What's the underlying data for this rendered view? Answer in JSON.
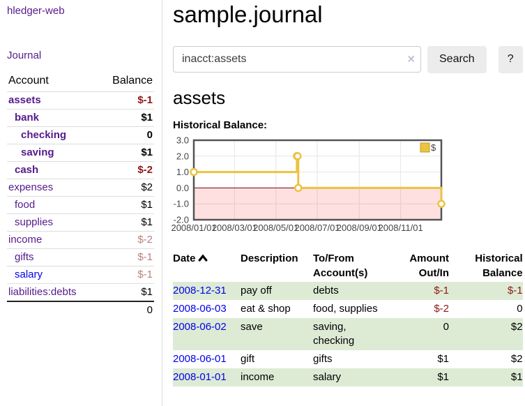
{
  "sidebar": {
    "app_link": "hledger-web",
    "journal_link": "Journal",
    "accounts": {
      "account_header": "Account",
      "balance_header": "Balance",
      "rows": [
        {
          "name": "assets",
          "indent": 0,
          "bold": true,
          "link": "purple",
          "balance": "$-1",
          "balance_style": "neg"
        },
        {
          "name": "bank",
          "indent": 1,
          "bold": true,
          "link": "purple",
          "balance": "$1",
          "balance_style": ""
        },
        {
          "name": "checking",
          "indent": 2,
          "bold": true,
          "link": "purple",
          "balance": "0",
          "balance_style": ""
        },
        {
          "name": "saving",
          "indent": 2,
          "bold": true,
          "link": "purple",
          "balance": "$1",
          "balance_style": ""
        },
        {
          "name": "cash",
          "indent": 1,
          "bold": true,
          "link": "purple",
          "balance": "$-2",
          "balance_style": "neg"
        },
        {
          "name": "expenses",
          "indent": 0,
          "bold": false,
          "link": "purple",
          "balance": "$2",
          "balance_style": ""
        },
        {
          "name": "food",
          "indent": 1,
          "bold": false,
          "link": "purple",
          "balance": "$1",
          "balance_style": ""
        },
        {
          "name": "supplies",
          "indent": 1,
          "bold": false,
          "link": "purple",
          "balance": "$1",
          "balance_style": ""
        },
        {
          "name": "income",
          "indent": 0,
          "bold": false,
          "link": "purple",
          "balance": "$-2",
          "balance_style": "mneg"
        },
        {
          "name": "gifts",
          "indent": 1,
          "bold": false,
          "link": "purple",
          "balance": "$-1",
          "balance_style": "mneg"
        },
        {
          "name": "salary",
          "indent": 1,
          "bold": false,
          "link": "blue",
          "balance": "$-1",
          "balance_style": "mneg"
        },
        {
          "name": "liabilities:debts",
          "indent": 0,
          "bold": false,
          "link": "purple",
          "balance": "$1",
          "balance_style": ""
        }
      ],
      "total": "0"
    }
  },
  "main": {
    "title": "sample.journal",
    "search": {
      "value": "inacct:assets",
      "clear_icon": "×",
      "button_label": "Search",
      "help_label": "?"
    },
    "account_heading": "assets",
    "chart_label": "Historical Balance:"
  },
  "chart_data": {
    "type": "line",
    "title": "Historical Balance:",
    "step": true,
    "x_range": [
      "2008-01-01",
      "2008-12-31"
    ],
    "y_range": [
      -2,
      3
    ],
    "y_ticks": [
      3,
      2,
      1,
      0,
      -1,
      -2
    ],
    "x_tick_labels": [
      "2008/01/01",
      "2008/03/01",
      "2008/05/01",
      "2008/07/01",
      "2008/09/01",
      "2008/11/01"
    ],
    "series": [
      {
        "name": "$",
        "color": "#edc240",
        "points": [
          [
            "2008-01-01",
            1
          ],
          [
            "2008-06-01",
            2
          ],
          [
            "2008-06-02",
            2
          ],
          [
            "2008-06-03",
            0
          ],
          [
            "2008-12-31",
            -1
          ]
        ]
      }
    ],
    "negative_region_fill": "rgba(255,0,0,0.12)",
    "zero_line_color": "#800000",
    "grid_color": "#e6e6e6",
    "border_color": "#545454",
    "legend_position": "top-right"
  },
  "register": {
    "headers": {
      "date": "Date",
      "description": "Description",
      "tofrom": "To/From\nAccount(s)",
      "amount": "Amount\nOut/In",
      "balance": "Historical\nBalance"
    },
    "rows": [
      {
        "date": "2008-12-31",
        "description": "pay off",
        "tofrom": "debts",
        "amount": "$-1",
        "amount_style": "neg",
        "balance": "$-1",
        "balance_style": "neg"
      },
      {
        "date": "2008-06-03",
        "description": "eat & shop",
        "tofrom": "food, supplies",
        "amount": "$-2",
        "amount_style": "neg",
        "balance": "0",
        "balance_style": ""
      },
      {
        "date": "2008-06-02",
        "description": "save",
        "tofrom": "saving,\nchecking",
        "amount": "0",
        "amount_style": "",
        "balance": "$2",
        "balance_style": ""
      },
      {
        "date": "2008-06-01",
        "description": "gift",
        "tofrom": "gifts",
        "amount": "$1",
        "amount_style": "",
        "balance": "$2",
        "balance_style": ""
      },
      {
        "date": "2008-01-01",
        "description": "income",
        "tofrom": "salary",
        "amount": "$1",
        "amount_style": "",
        "balance": "$1",
        "balance_style": ""
      }
    ]
  },
  "colors": {
    "link_purple": "#551a8b",
    "link_blue": "#0000ee",
    "negative_red": "#8f1616",
    "muted_negative": "#bb7f7f",
    "row_stripe_green": "#ddebd5",
    "series_yellow": "#edc240",
    "zero_line": "#800000",
    "button_gray": "#ececec"
  }
}
